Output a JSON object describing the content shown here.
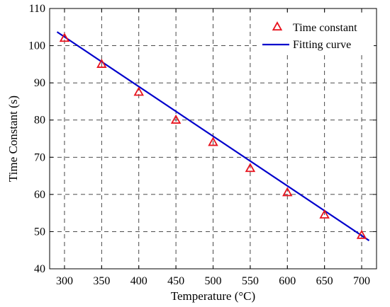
{
  "chart_data": {
    "type": "line",
    "xlabel": "Temperature (°C)",
    "ylabel": "Time Constant (s)",
    "xlim": [
      280,
      720
    ],
    "ylim": [
      40,
      110
    ],
    "x_ticks": [
      300,
      350,
      400,
      450,
      500,
      550,
      600,
      650,
      700
    ],
    "y_ticks": [
      40,
      50,
      60,
      70,
      80,
      90,
      100,
      110
    ],
    "grid": true,
    "legend_position": "top-right",
    "series": [
      {
        "name": "Time constant",
        "kind": "scatter",
        "marker": "triangle",
        "color": "#e8141f",
        "x": [
          300,
          350,
          400,
          450,
          500,
          550,
          600,
          650,
          700
        ],
        "y": [
          102,
          95,
          87.5,
          80,
          74,
          67,
          60.5,
          54.5,
          49
        ]
      },
      {
        "name": "Fitting curve",
        "kind": "line",
        "color": "#0000cc",
        "x": [
          290,
          710
        ],
        "y": [
          103.7,
          47.6
        ]
      }
    ]
  }
}
